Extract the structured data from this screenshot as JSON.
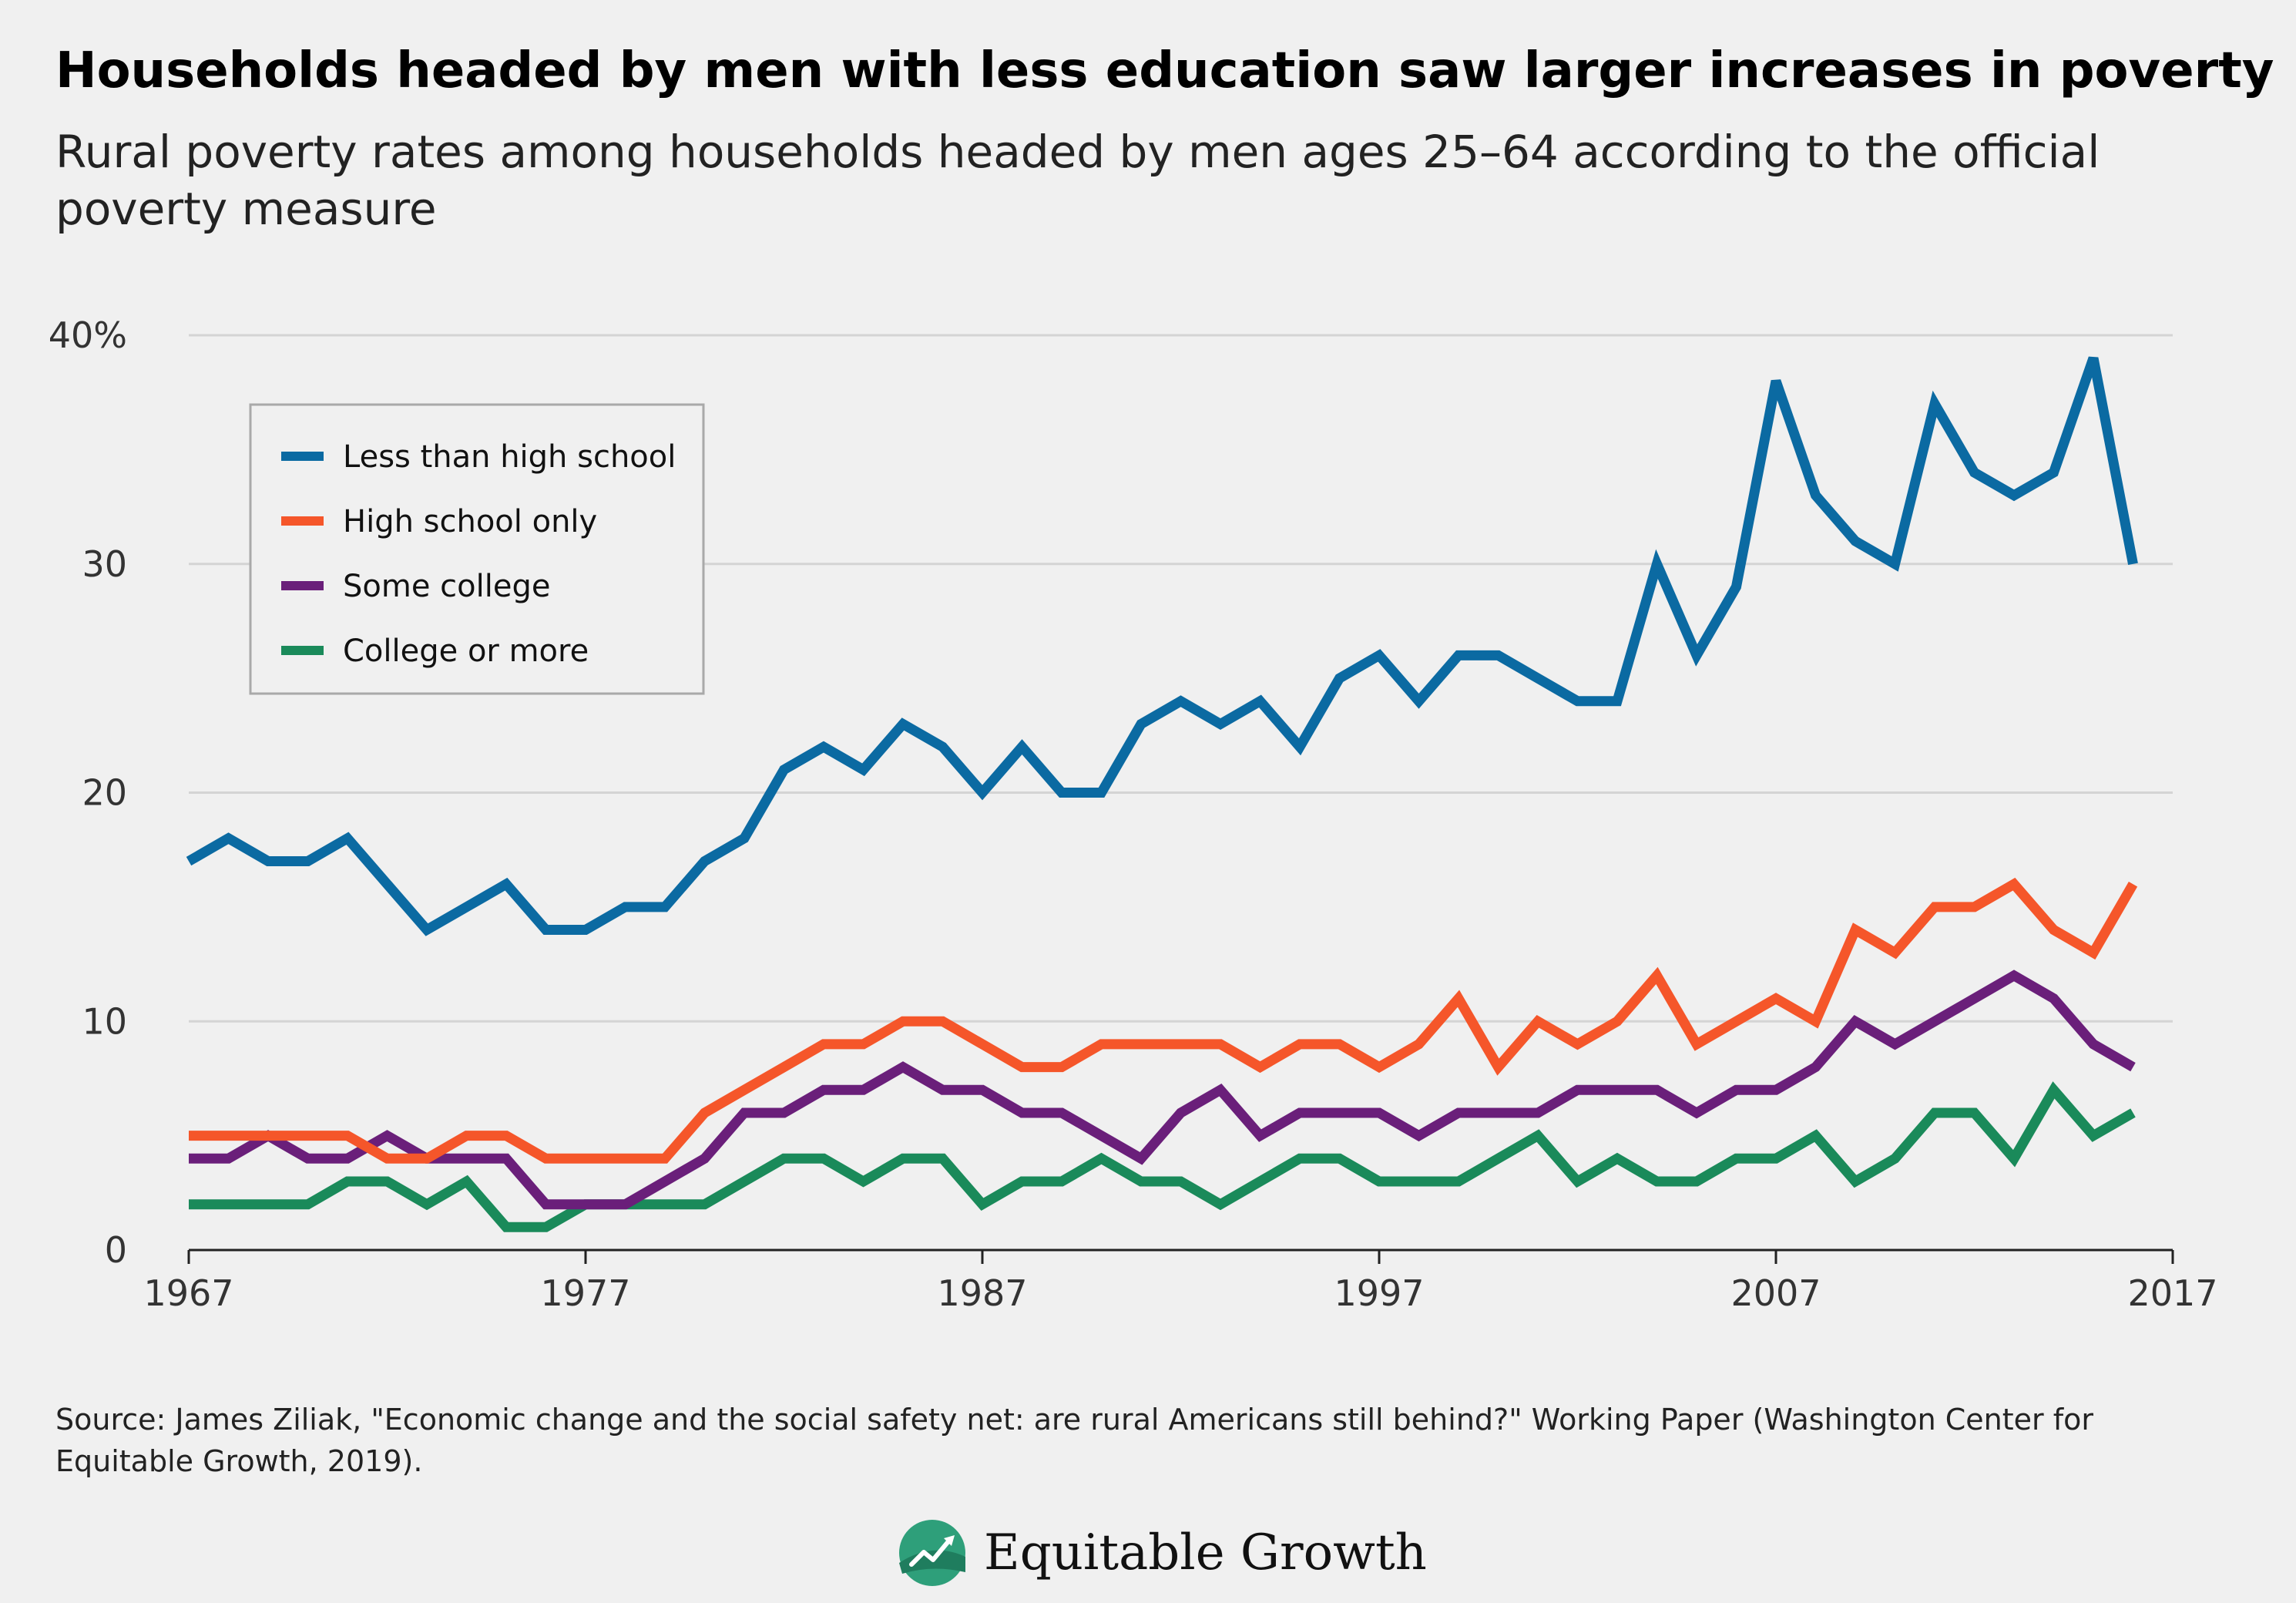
{
  "title": "Households headed by men with less education saw larger increases in poverty",
  "subtitle": "Rural poverty rates among households headed by men ages 25–64 according to the official poverty measure",
  "source": "Source: James Ziliak, \"Economic change and the social safety net: are rural Americans still behind?\" Working Paper (Washington Center for Equitable Growth, 2019).",
  "brand": {
    "name": "Equitable Growth",
    "logo_icon": "equitable-growth-logo-icon"
  },
  "colors": {
    "less_than_high_school": "#0b6aa2",
    "high_school_only": "#f5562a",
    "some_college": "#6a1f7a",
    "college_or_more": "#1a8a5a",
    "grid": "#d4d4d4",
    "axis": "#222222"
  },
  "chart_data": {
    "type": "line",
    "title": "Households headed by men with less education saw larger increases in poverty",
    "subtitle": "Rural poverty rates among households headed by men ages 25–64 according to the official poverty measure",
    "xlabel": "",
    "ylabel": "",
    "xlim": [
      1967,
      2017
    ],
    "ylim": [
      0,
      40
    ],
    "x_ticks": [
      {
        "value": 1967,
        "label": "1967"
      },
      {
        "value": 1977,
        "label": "1977"
      },
      {
        "value": 1987,
        "label": "1987"
      },
      {
        "value": 1997,
        "label": "1997"
      },
      {
        "value": 2007,
        "label": "2007"
      },
      {
        "value": 2017,
        "label": "2017"
      }
    ],
    "y_ticks": [
      {
        "value": 0,
        "label": "0"
      },
      {
        "value": 10,
        "label": "10"
      },
      {
        "value": 20,
        "label": "20"
      },
      {
        "value": 30,
        "label": "30"
      },
      {
        "value": 40,
        "label": "40%"
      }
    ],
    "grid": "horizontal",
    "legend_position": "top-left",
    "x": [
      1967,
      1968,
      1969,
      1970,
      1971,
      1972,
      1973,
      1974,
      1975,
      1976,
      1977,
      1978,
      1979,
      1980,
      1981,
      1982,
      1983,
      1984,
      1985,
      1986,
      1987,
      1988,
      1989,
      1990,
      1991,
      1992,
      1993,
      1994,
      1995,
      1996,
      1997,
      1998,
      1999,
      2000,
      2001,
      2002,
      2003,
      2004,
      2005,
      2006,
      2007,
      2008,
      2009,
      2010,
      2011,
      2012,
      2013,
      2014,
      2015,
      2016
    ],
    "series": [
      {
        "name": "Less than high school",
        "color_key": "less_than_high_school",
        "values": [
          17,
          18,
          17,
          17,
          18,
          16,
          14,
          15,
          16,
          14,
          14,
          15,
          15,
          17,
          18,
          21,
          22,
          21,
          23,
          22,
          20,
          22,
          20,
          20,
          23,
          24,
          23,
          24,
          22,
          25,
          26,
          24,
          26,
          26,
          25,
          24,
          24,
          30,
          26,
          29,
          38,
          33,
          31,
          30,
          37,
          34,
          33,
          34,
          39,
          30
        ]
      },
      {
        "name": "High school only",
        "color_key": "high_school_only",
        "values": [
          5,
          5,
          5,
          5,
          5,
          4,
          4,
          5,
          5,
          4,
          4,
          4,
          4,
          6,
          7,
          8,
          9,
          9,
          10,
          10,
          9,
          8,
          8,
          9,
          9,
          9,
          9,
          8,
          9,
          9,
          8,
          9,
          11,
          8,
          10,
          9,
          10,
          12,
          9,
          10,
          11,
          10,
          14,
          13,
          15,
          15,
          16,
          14,
          13,
          16
        ]
      },
      {
        "name": "Some college",
        "color_key": "some_college",
        "values": [
          4,
          4,
          5,
          4,
          4,
          5,
          4,
          4,
          4,
          2,
          2,
          2,
          3,
          4,
          6,
          6,
          7,
          7,
          8,
          7,
          7,
          6,
          6,
          5,
          4,
          6,
          7,
          5,
          6,
          6,
          6,
          5,
          6,
          6,
          6,
          7,
          7,
          7,
          6,
          7,
          7,
          8,
          10,
          9,
          10,
          11,
          12,
          11,
          9,
          8
        ]
      },
      {
        "name": "College or more",
        "color_key": "college_or_more",
        "values": [
          2,
          2,
          2,
          2,
          3,
          3,
          2,
          3,
          1,
          1,
          2,
          2,
          2,
          2,
          3,
          4,
          4,
          3,
          4,
          4,
          2,
          3,
          3,
          4,
          3,
          3,
          2,
          3,
          4,
          4,
          3,
          3,
          3,
          4,
          5,
          3,
          4,
          3,
          3,
          4,
          4,
          5,
          3,
          4,
          6,
          6,
          4,
          7,
          5,
          6
        ]
      }
    ]
  }
}
